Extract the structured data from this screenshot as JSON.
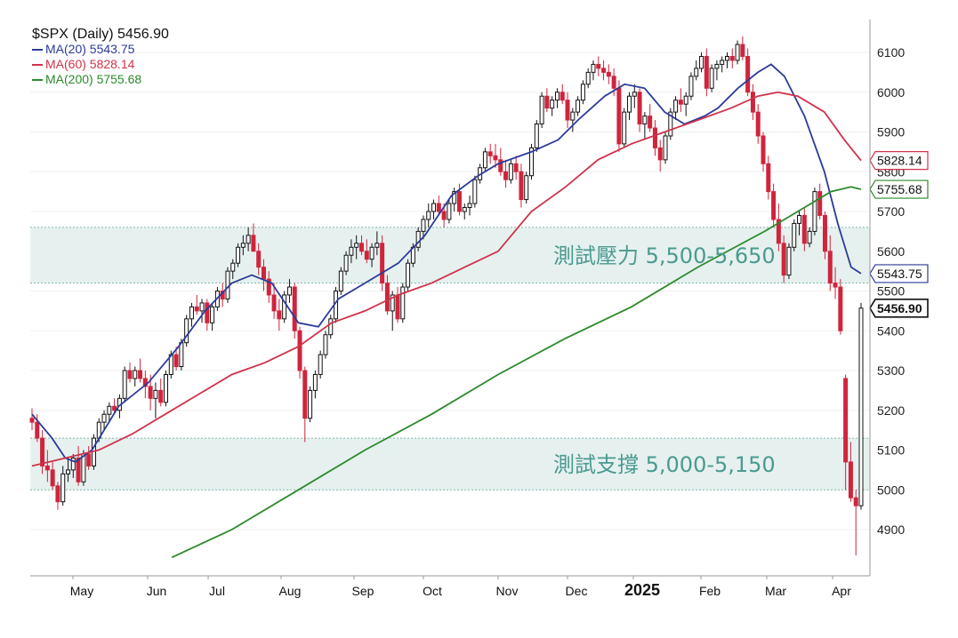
{
  "chart_data": {
    "type": "candlestick",
    "title": "$SPX (Daily) 5456.90",
    "legend": [
      {
        "label": "MA(20) 5543.75",
        "color": "#2b3a9a"
      },
      {
        "label": "MA(60) 5828.14",
        "color": "#d0324b"
      },
      {
        "label": "MA(200) 5755.68",
        "color": "#2c8a2c"
      }
    ],
    "ylim": [
      4830,
      6150
    ],
    "y_ticks": [
      4900,
      5000,
      5100,
      5200,
      5300,
      5400,
      5500,
      5600,
      5700,
      5800,
      5900,
      6000,
      6100
    ],
    "x_labels": [
      {
        "label": "May",
        "bold": false
      },
      {
        "label": "Jun",
        "bold": false
      },
      {
        "label": "Jul",
        "bold": false
      },
      {
        "label": "Aug",
        "bold": false
      },
      {
        "label": "Sep",
        "bold": false
      },
      {
        "label": "Oct",
        "bold": false
      },
      {
        "label": "Nov",
        "bold": false
      },
      {
        "label": "Dec",
        "bold": false
      },
      {
        "label": "2025",
        "bold": true
      },
      {
        "label": "Feb",
        "bold": false
      },
      {
        "label": "Mar",
        "bold": false
      },
      {
        "label": "Apr",
        "bold": false
      }
    ],
    "zones": [
      {
        "label": "測試壓力 5,500-5,650",
        "low": 5520,
        "high": 5660,
        "color": "#e6f1ef",
        "text_color": "#4a9a8f"
      },
      {
        "label": "測試支撐 5,000-5,150",
        "low": 5000,
        "high": 5130,
        "color": "#e6f1ef",
        "text_color": "#4a9a8f"
      }
    ],
    "price_tags": [
      {
        "label": "5828.14",
        "value": 5828.14,
        "color": "#d0324b",
        "bold": false
      },
      {
        "label": "5755.68",
        "value": 5755.68,
        "color": "#2c8a2c",
        "bold": false
      },
      {
        "label": "5543.75",
        "value": 5543.75,
        "color": "#2b3a9a",
        "bold": false
      },
      {
        "label": "5456.90",
        "value": 5456.9,
        "color": "#111111",
        "bold": true
      }
    ],
    "series": [
      {
        "name": "MA(20)",
        "color": "#2b3a9a",
        "points": [
          [
            0,
            5190
          ],
          [
            6,
            5130
          ],
          [
            10,
            5080
          ],
          [
            13,
            5070
          ],
          [
            18,
            5100
          ],
          [
            26,
            5210
          ],
          [
            35,
            5270
          ],
          [
            44,
            5360
          ],
          [
            52,
            5450
          ],
          [
            60,
            5520
          ],
          [
            66,
            5540
          ],
          [
            72,
            5520
          ],
          [
            76,
            5470
          ],
          [
            80,
            5420
          ],
          [
            86,
            5410
          ],
          [
            92,
            5480
          ],
          [
            100,
            5520
          ],
          [
            110,
            5570
          ],
          [
            118,
            5640
          ],
          [
            126,
            5740
          ],
          [
            134,
            5790
          ],
          [
            140,
            5820
          ],
          [
            150,
            5850
          ],
          [
            158,
            5880
          ],
          [
            164,
            5930
          ],
          [
            172,
            5990
          ],
          [
            178,
            6020
          ],
          [
            184,
            6010
          ],
          [
            190,
            5950
          ],
          [
            196,
            5920
          ],
          [
            202,
            5940
          ],
          [
            206,
            5960
          ],
          [
            212,
            6010
          ],
          [
            218,
            6050
          ],
          [
            222,
            6070
          ],
          [
            226,
            6040
          ],
          [
            232,
            5940
          ],
          [
            238,
            5800
          ],
          [
            242,
            5670
          ],
          [
            246,
            5560
          ],
          [
            249,
            5543.75
          ]
        ]
      },
      {
        "name": "MA(60)",
        "color": "#d0324b",
        "points": [
          [
            0,
            5060
          ],
          [
            10,
            5080
          ],
          [
            20,
            5100
          ],
          [
            30,
            5140
          ],
          [
            40,
            5190
          ],
          [
            50,
            5240
          ],
          [
            60,
            5290
          ],
          [
            70,
            5320
          ],
          [
            80,
            5360
          ],
          [
            90,
            5420
          ],
          [
            100,
            5450
          ],
          [
            110,
            5490
          ],
          [
            120,
            5520
          ],
          [
            130,
            5560
          ],
          [
            140,
            5600
          ],
          [
            150,
            5700
          ],
          [
            160,
            5760
          ],
          [
            170,
            5830
          ],
          [
            180,
            5870
          ],
          [
            190,
            5900
          ],
          [
            200,
            5930
          ],
          [
            210,
            5960
          ],
          [
            218,
            5990
          ],
          [
            224,
            6000
          ],
          [
            230,
            5990
          ],
          [
            238,
            5950
          ],
          [
            244,
            5880
          ],
          [
            249,
            5828.14
          ]
        ]
      },
      {
        "name": "MA(200)",
        "color": "#2c8a2c",
        "points": [
          [
            42,
            4830
          ],
          [
            60,
            4900
          ],
          [
            80,
            5000
          ],
          [
            100,
            5100
          ],
          [
            120,
            5190
          ],
          [
            140,
            5290
          ],
          [
            160,
            5380
          ],
          [
            180,
            5460
          ],
          [
            200,
            5560
          ],
          [
            220,
            5650
          ],
          [
            232,
            5710
          ],
          [
            240,
            5750
          ],
          [
            246,
            5762
          ],
          [
            249,
            5755.68
          ]
        ]
      }
    ],
    "candles": [
      [
        5180,
        5205,
        5150,
        5170
      ],
      [
        5170,
        5190,
        5120,
        5130
      ],
      [
        5130,
        5150,
        5040,
        5060
      ],
      [
        5060,
        5100,
        5020,
        5050
      ],
      [
        5050,
        5070,
        5000,
        5010
      ],
      [
        5010,
        5020,
        4950,
        4970
      ],
      [
        4970,
        5060,
        4960,
        5040
      ],
      [
        5040,
        5080,
        5020,
        5050
      ],
      [
        5050,
        5090,
        5030,
        5080
      ],
      [
        5080,
        5110,
        5010,
        5020
      ],
      [
        5020,
        5100,
        5010,
        5090
      ],
      [
        5090,
        5110,
        5050,
        5060
      ],
      [
        5060,
        5140,
        5050,
        5130
      ],
      [
        5130,
        5180,
        5120,
        5170
      ],
      [
        5170,
        5200,
        5150,
        5190
      ],
      [
        5190,
        5220,
        5170,
        5210
      ],
      [
        5210,
        5230,
        5190,
        5200
      ],
      [
        5200,
        5240,
        5180,
        5230
      ],
      [
        5230,
        5310,
        5220,
        5300
      ],
      [
        5300,
        5320,
        5270,
        5280
      ],
      [
        5280,
        5310,
        5260,
        5300
      ],
      [
        5300,
        5330,
        5270,
        5280
      ],
      [
        5280,
        5300,
        5230,
        5260
      ],
      [
        5260,
        5290,
        5200,
        5230
      ],
      [
        5230,
        5270,
        5180,
        5250
      ],
      [
        5250,
        5280,
        5210,
        5220
      ],
      [
        5220,
        5300,
        5210,
        5290
      ],
      [
        5290,
        5350,
        5280,
        5340
      ],
      [
        5340,
        5360,
        5300,
        5310
      ],
      [
        5310,
        5380,
        5300,
        5370
      ],
      [
        5370,
        5440,
        5360,
        5430
      ],
      [
        5430,
        5470,
        5410,
        5460
      ],
      [
        5460,
        5490,
        5440,
        5450
      ],
      [
        5450,
        5480,
        5420,
        5470
      ],
      [
        5470,
        5480,
        5400,
        5420
      ],
      [
        5420,
        5470,
        5400,
        5460
      ],
      [
        5460,
        5510,
        5450,
        5500
      ],
      [
        5500,
        5520,
        5460,
        5480
      ],
      [
        5480,
        5560,
        5470,
        5550
      ],
      [
        5550,
        5580,
        5530,
        5570
      ],
      [
        5570,
        5620,
        5560,
        5610
      ],
      [
        5610,
        5640,
        5590,
        5620
      ],
      [
        5620,
        5660,
        5600,
        5640
      ],
      [
        5640,
        5670,
        5610,
        5600
      ],
      [
        5600,
        5620,
        5540,
        5560
      ],
      [
        5560,
        5580,
        5500,
        5530
      ],
      [
        5530,
        5550,
        5470,
        5490
      ],
      [
        5490,
        5520,
        5430,
        5450
      ],
      [
        5450,
        5480,
        5400,
        5430
      ],
      [
        5430,
        5500,
        5420,
        5490
      ],
      [
        5490,
        5530,
        5470,
        5510
      ],
      [
        5510,
        5520,
        5380,
        5400
      ],
      [
        5400,
        5410,
        5280,
        5300
      ],
      [
        5300,
        5310,
        5120,
        5180
      ],
      [
        5180,
        5260,
        5170,
        5250
      ],
      [
        5250,
        5300,
        5230,
        5290
      ],
      [
        5290,
        5350,
        5280,
        5340
      ],
      [
        5340,
        5400,
        5330,
        5390
      ],
      [
        5390,
        5440,
        5380,
        5430
      ],
      [
        5430,
        5510,
        5420,
        5500
      ],
      [
        5500,
        5560,
        5490,
        5550
      ],
      [
        5550,
        5600,
        5540,
        5590
      ],
      [
        5590,
        5630,
        5570,
        5610
      ],
      [
        5610,
        5640,
        5580,
        5620
      ],
      [
        5620,
        5640,
        5590,
        5600
      ],
      [
        5600,
        5630,
        5570,
        5580
      ],
      [
        5580,
        5620,
        5560,
        5610
      ],
      [
        5610,
        5650,
        5590,
        5620
      ],
      [
        5620,
        5640,
        5500,
        5520
      ],
      [
        5520,
        5540,
        5440,
        5450
      ],
      [
        5450,
        5500,
        5400,
        5490
      ],
      [
        5490,
        5510,
        5420,
        5430
      ],
      [
        5430,
        5520,
        5420,
        5510
      ],
      [
        5510,
        5580,
        5500,
        5570
      ],
      [
        5570,
        5620,
        5560,
        5610
      ],
      [
        5610,
        5660,
        5600,
        5650
      ],
      [
        5650,
        5690,
        5630,
        5680
      ],
      [
        5680,
        5720,
        5660,
        5700
      ],
      [
        5700,
        5730,
        5680,
        5720
      ],
      [
        5720,
        5740,
        5690,
        5700
      ],
      [
        5700,
        5720,
        5660,
        5680
      ],
      [
        5680,
        5730,
        5670,
        5720
      ],
      [
        5720,
        5760,
        5700,
        5750
      ],
      [
        5750,
        5770,
        5690,
        5700
      ],
      [
        5700,
        5720,
        5680,
        5710
      ],
      [
        5710,
        5740,
        5690,
        5720
      ],
      [
        5720,
        5790,
        5710,
        5780
      ],
      [
        5780,
        5820,
        5770,
        5810
      ],
      [
        5810,
        5860,
        5800,
        5850
      ],
      [
        5850,
        5870,
        5820,
        5840
      ],
      [
        5840,
        5870,
        5810,
        5830
      ],
      [
        5830,
        5860,
        5790,
        5800
      ],
      [
        5800,
        5830,
        5760,
        5780
      ],
      [
        5780,
        5830,
        5770,
        5820
      ],
      [
        5820,
        5840,
        5780,
        5800
      ],
      [
        5800,
        5820,
        5710,
        5730
      ],
      [
        5730,
        5800,
        5720,
        5790
      ],
      [
        5790,
        5870,
        5780,
        5860
      ],
      [
        5860,
        5930,
        5850,
        5920
      ],
      [
        5920,
        6000,
        5910,
        5990
      ],
      [
        5990,
        6010,
        5950,
        5960
      ],
      [
        5960,
        5990,
        5940,
        5980
      ],
      [
        5980,
        6010,
        5960,
        6000
      ],
      [
        6000,
        6020,
        5970,
        5980
      ],
      [
        5980,
        6000,
        5910,
        5930
      ],
      [
        5930,
        5960,
        5900,
        5950
      ],
      [
        5950,
        5990,
        5940,
        5980
      ],
      [
        5980,
        6030,
        5970,
        6020
      ],
      [
        6020,
        6060,
        6010,
        6050
      ],
      [
        6050,
        6080,
        6030,
        6070
      ],
      [
        6070,
        6090,
        6040,
        6060
      ],
      [
        6060,
        6080,
        6030,
        6050
      ],
      [
        6050,
        6070,
        6020,
        6040
      ],
      [
        6040,
        6060,
        5990,
        6010
      ],
      [
        6010,
        6030,
        5850,
        5870
      ],
      [
        5870,
        5960,
        5860,
        5950
      ],
      [
        5950,
        6000,
        5930,
        5990
      ],
      [
        5990,
        6020,
        5960,
        6000
      ],
      [
        6000,
        6010,
        5900,
        5920
      ],
      [
        5920,
        5950,
        5880,
        5940
      ],
      [
        5940,
        5970,
        5900,
        5910
      ],
      [
        5910,
        5930,
        5840,
        5860
      ],
      [
        5860,
        5880,
        5800,
        5830
      ],
      [
        5830,
        5900,
        5820,
        5890
      ],
      [
        5890,
        5960,
        5880,
        5950
      ],
      [
        5950,
        5990,
        5930,
        5980
      ],
      [
        5980,
        6010,
        5950,
        5970
      ],
      [
        5970,
        6000,
        5940,
        5990
      ],
      [
        5990,
        6050,
        5980,
        6040
      ],
      [
        6040,
        6080,
        6030,
        6060
      ],
      [
        6060,
        6100,
        6050,
        6090
      ],
      [
        6090,
        6110,
        5990,
        6010
      ],
      [
        6010,
        6070,
        6000,
        6060
      ],
      [
        6060,
        6080,
        6030,
        6070
      ],
      [
        6070,
        6090,
        6050,
        6080
      ],
      [
        6080,
        6100,
        6060,
        6090
      ],
      [
        6090,
        6110,
        6060,
        6080
      ],
      [
        6080,
        6130,
        6070,
        6120
      ],
      [
        6120,
        6140,
        6080,
        6090
      ],
      [
        6090,
        6110,
        5990,
        6000
      ],
      [
        6000,
        6020,
        5930,
        5950
      ],
      [
        5950,
        5970,
        5870,
        5890
      ],
      [
        5890,
        5900,
        5800,
        5820
      ],
      [
        5820,
        5840,
        5730,
        5750
      ],
      [
        5750,
        5770,
        5660,
        5680
      ],
      [
        5680,
        5720,
        5600,
        5620
      ],
      [
        5620,
        5640,
        5520,
        5540
      ],
      [
        5540,
        5620,
        5530,
        5610
      ],
      [
        5610,
        5680,
        5600,
        5670
      ],
      [
        5670,
        5700,
        5640,
        5690
      ],
      [
        5690,
        5710,
        5600,
        5620
      ],
      [
        5620,
        5660,
        5610,
        5650
      ],
      [
        5650,
        5760,
        5640,
        5750
      ],
      [
        5750,
        5770,
        5680,
        5690
      ],
      [
        5690,
        5700,
        5580,
        5600
      ],
      [
        5600,
        5640,
        5500,
        5520
      ],
      [
        5520,
        5560,
        5480,
        5510
      ],
      [
        5510,
        5530,
        5390,
        5400
      ],
      [
        5280,
        5290,
        5000,
        5070
      ],
      [
        5070,
        5120,
        4970,
        4980
      ],
      [
        4980,
        5000,
        4835,
        4960
      ],
      [
        4960,
        5470,
        4950,
        5456.9
      ]
    ]
  }
}
